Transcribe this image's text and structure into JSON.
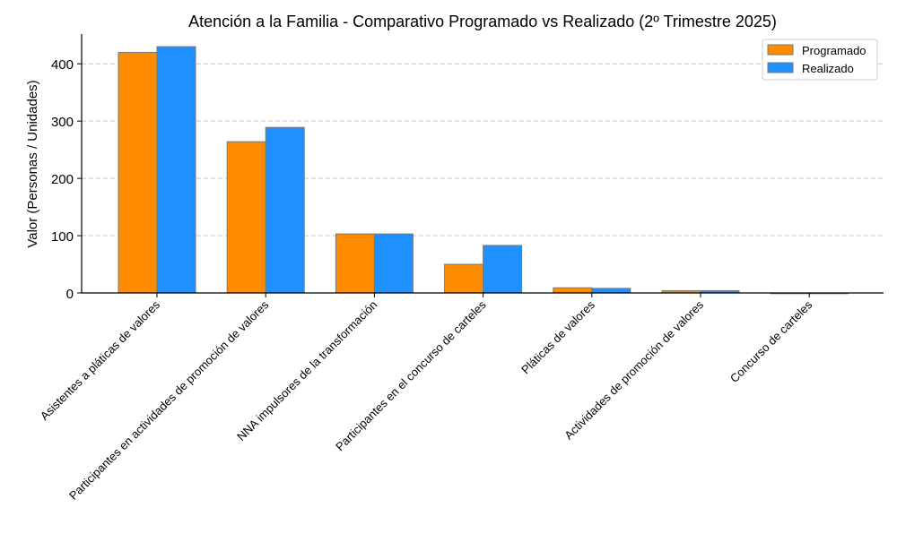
{
  "chart_data": {
    "type": "bar",
    "title": "Atención a la Familia - Comparativo Programado vs Realizado (2º Trimestre 2025)",
    "xlabel": "",
    "ylabel": "Valor (Personas / Unidades)",
    "ylim": [
      0,
      452
    ],
    "yticks": [
      0,
      100,
      200,
      300,
      400
    ],
    "grid": "y-dashed",
    "legend": "top-right",
    "categories": [
      "Asistentes a pláticas de valores",
      "Participantes en actividades de promoción de valores",
      "NNA impulsores de la transformación",
      "Participantes en el concurso de carteles",
      "Pláticas de valores",
      "Actividades de promoción de valores",
      "Concurso de carteles"
    ],
    "series": [
      {
        "name": "Programado",
        "color": "#FF8C00",
        "values": [
          420,
          264,
          103,
          50,
          9,
          4,
          0
        ]
      },
      {
        "name": "Realizado",
        "color": "#1E90FF",
        "values": [
          430,
          289,
          103,
          83,
          8,
          4,
          0
        ]
      }
    ]
  }
}
